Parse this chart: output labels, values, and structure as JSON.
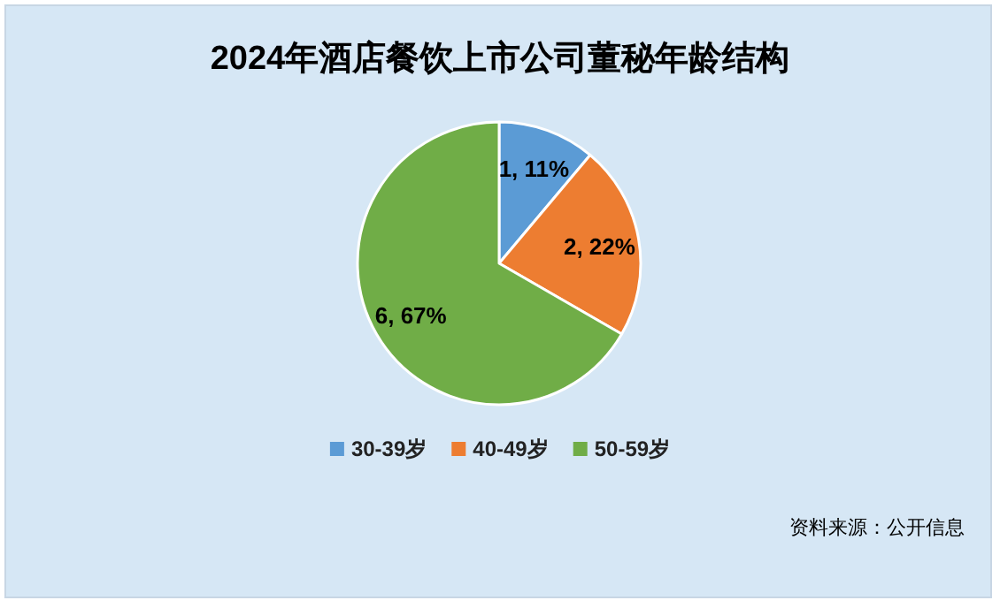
{
  "chart_data": {
    "type": "pie",
    "title": "2024年酒店餐饮上市公司董秘年龄结构",
    "categories": [
      "30-39岁",
      "40-49岁",
      "50-59岁"
    ],
    "values": [
      1,
      2,
      6
    ],
    "colors": [
      "#5b9bd5",
      "#ed7d31",
      "#70ad47"
    ],
    "value_labels": [
      "1, 11%",
      "2, 22%",
      "6, 67%"
    ],
    "legend": "bottom",
    "annotations": [
      "资料来源：公开信息"
    ]
  }
}
